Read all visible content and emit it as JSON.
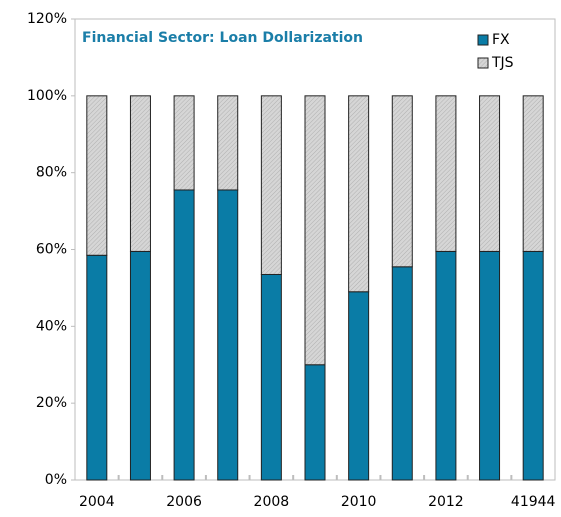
{
  "chart_data": {
    "type": "stacked_bar",
    "title": "Financial Sector: Loan Dollarization",
    "categories": [
      "2004",
      null,
      "2006",
      null,
      "2008",
      null,
      "2010",
      null,
      "2012",
      null,
      "41944"
    ],
    "series": [
      {
        "name": "FX",
        "color": "#0a7ca6",
        "values": [
          58.5,
          59.5,
          75.5,
          75.5,
          53.5,
          30,
          49,
          55.5,
          59.5,
          59.5,
          59.5
        ]
      },
      {
        "name": "TJS",
        "color": "#d3d3d3",
        "values": [
          41.5,
          40.5,
          24.5,
          24.5,
          46.5,
          70,
          51,
          44.5,
          40.5,
          40.5,
          40.5
        ]
      }
    ],
    "ylim": [
      0,
      120
    ],
    "yticks": [
      {
        "value": 0,
        "label": "0%"
      },
      {
        "value": 20,
        "label": "20%"
      },
      {
        "value": 40,
        "label": "40%"
      },
      {
        "value": 60,
        "label": "60%"
      },
      {
        "value": 80,
        "label": "80%"
      },
      {
        "value": 100,
        "label": "100%"
      },
      {
        "value": 120,
        "label": "120%"
      }
    ],
    "legend": "top-right"
  }
}
